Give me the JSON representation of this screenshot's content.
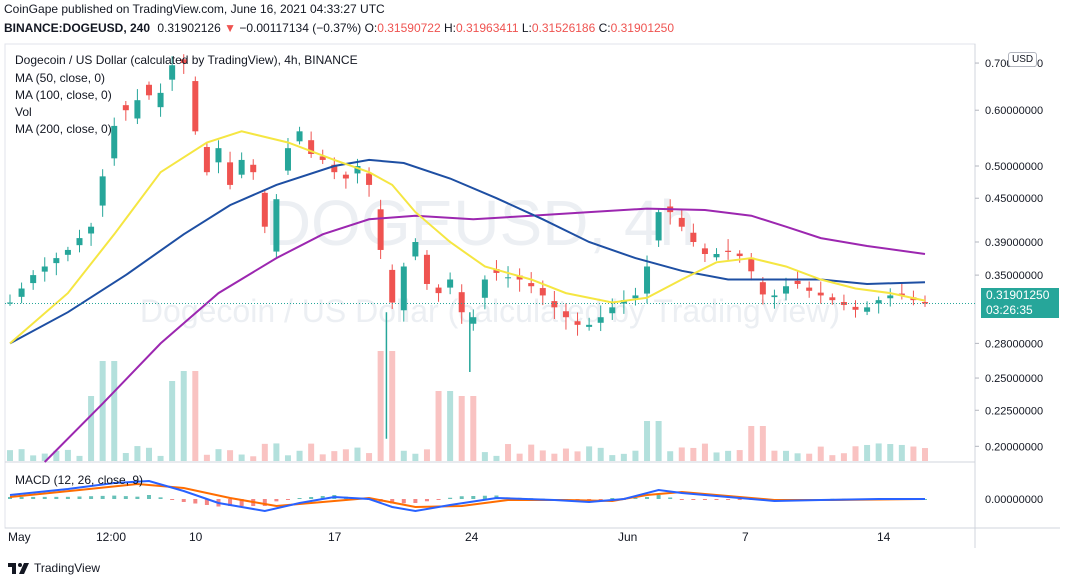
{
  "header": {
    "line1": "CoinGape published on TradingView.com, June 16, 2021 04:33:27 UTC",
    "symbol": "BINANCE:DOGEUSD, 240",
    "price": "0.31902126",
    "change_arrow": "▼",
    "change": "−0.00117134 (−0.37%)",
    "o_label": "O:",
    "o_value": "0.31590722",
    "h_label": "H:",
    "h_value": "0.31963411",
    "l_label": "L:",
    "l_value": "0.31526186",
    "c_label": "C:",
    "c_value": "0.31901250"
  },
  "legend": {
    "title": "Dogecoin / US Dollar (calculated by TradingView), 4h, BINANCE",
    "ma50": "MA (50, close, 0)",
    "ma100": "MA (100, close, 0)",
    "vol": "Vol",
    "ma200": "MA (200, close, 0)",
    "macd": "MACD (12, 26, close, 9)"
  },
  "watermark": {
    "symbol": "DOGEUSD, 4h",
    "desc": "Dogecoin / US Dollar (calculated by TradingView)"
  },
  "price_tag": {
    "price": "0.31901250",
    "countdown": "03:26:35"
  },
  "currency_badge": "USD",
  "footer": {
    "brand": "TradingView"
  },
  "colors": {
    "up": "#26a69a",
    "down": "#ef5350",
    "ma50": "#f5e642",
    "ma100": "#1e4fa3",
    "ma200": "#9c27b0",
    "macd": "#2962ff",
    "signal": "#ff6d00"
  },
  "chart_data": {
    "type": "candlestick",
    "x_labels": [
      "May",
      "12:00",
      "10",
      "17",
      "24",
      "Jun",
      "7",
      "14"
    ],
    "y_ticks": [
      "0.70000000",
      "0.60000000",
      "0.50000000",
      "0.45000000",
      "0.39000000",
      "0.35000000",
      "0.28000000",
      "0.25000000",
      "0.22500000",
      "0.20000000"
    ],
    "macd_ticks": [
      "0.00000000"
    ],
    "last_price": 0.319,
    "price_path": [
      [
        0,
        0.32
      ],
      [
        2,
        0.35
      ],
      [
        5,
        0.38
      ],
      [
        7,
        0.41
      ],
      [
        8.5,
        0.52
      ],
      [
        9.5,
        0.62
      ],
      [
        10.5,
        0.58
      ],
      [
        11.5,
        0.66
      ],
      [
        12.5,
        0.6
      ],
      [
        13.5,
        0.67
      ],
      [
        14.3,
        0.71
      ],
      [
        15,
        0.7
      ],
      [
        15.5,
        0.65
      ],
      [
        16,
        0.56
      ],
      [
        17,
        0.49
      ],
      [
        18,
        0.53
      ],
      [
        19,
        0.47
      ],
      [
        20,
        0.51
      ],
      [
        21,
        0.49
      ],
      [
        22,
        0.41
      ],
      [
        22.5,
        0.37
      ],
      [
        23.2,
        0.48
      ],
      [
        24,
        0.53
      ],
      [
        25,
        0.56
      ],
      [
        26,
        0.52
      ],
      [
        27,
        0.51
      ],
      [
        28,
        0.49
      ],
      [
        29,
        0.48
      ],
      [
        30,
        0.5
      ],
      [
        31,
        0.47
      ],
      [
        32,
        0.38
      ],
      [
        33,
        0.32
      ],
      [
        33.5,
        0.31
      ],
      [
        34,
        0.36
      ],
      [
        35,
        0.39
      ],
      [
        35.5,
        0.37
      ],
      [
        36,
        0.34
      ],
      [
        37,
        0.33
      ],
      [
        38,
        0.345
      ],
      [
        39,
        0.31
      ],
      [
        39.7,
        0.29
      ],
      [
        40.5,
        0.33
      ],
      [
        41.5,
        0.36
      ],
      [
        42.5,
        0.345
      ],
      [
        43.5,
        0.35
      ],
      [
        44.5,
        0.34
      ],
      [
        45.5,
        0.335
      ],
      [
        46.5,
        0.32
      ],
      [
        47.5,
        0.31
      ],
      [
        48.5,
        0.3
      ],
      [
        49.5,
        0.295
      ],
      [
        50.5,
        0.3
      ],
      [
        51.5,
        0.31
      ],
      [
        52.5,
        0.32
      ],
      [
        53.5,
        0.325
      ],
      [
        54.5,
        0.33
      ],
      [
        55,
        0.36
      ],
      [
        55.5,
        0.4
      ],
      [
        56,
        0.43
      ],
      [
        56.5,
        0.44
      ],
      [
        57.5,
        0.42
      ],
      [
        58,
        0.41
      ],
      [
        58.5,
        0.4
      ],
      [
        59.5,
        0.38
      ],
      [
        60.5,
        0.37
      ],
      [
        61.5,
        0.38
      ],
      [
        62.5,
        0.375
      ],
      [
        63.5,
        0.37
      ],
      [
        64.3,
        0.345
      ],
      [
        64.8,
        0.33
      ],
      [
        65.5,
        0.325
      ],
      [
        66.5,
        0.33
      ],
      [
        67.5,
        0.345
      ],
      [
        68.5,
        0.335
      ],
      [
        69.5,
        0.33
      ],
      [
        70.5,
        0.325
      ],
      [
        71.5,
        0.32
      ],
      [
        72.5,
        0.315
      ],
      [
        73.5,
        0.31
      ],
      [
        74.5,
        0.32
      ],
      [
        75.5,
        0.325
      ],
      [
        76.5,
        0.33
      ],
      [
        77.5,
        0.325
      ],
      [
        78.5,
        0.32
      ],
      [
        79,
        0.319
      ]
    ],
    "ma50_path": [
      [
        0,
        0.28
      ],
      [
        5,
        0.33
      ],
      [
        9,
        0.4
      ],
      [
        13,
        0.49
      ],
      [
        17,
        0.54
      ],
      [
        20,
        0.56
      ],
      [
        24,
        0.54
      ],
      [
        28,
        0.51
      ],
      [
        31,
        0.49
      ],
      [
        33,
        0.47
      ],
      [
        35,
        0.43
      ],
      [
        38,
        0.39
      ],
      [
        41,
        0.36
      ],
      [
        45,
        0.345
      ],
      [
        48,
        0.33
      ],
      [
        52,
        0.32
      ],
      [
        55,
        0.325
      ],
      [
        58,
        0.345
      ],
      [
        61,
        0.365
      ],
      [
        64,
        0.37
      ],
      [
        67,
        0.36
      ],
      [
        70,
        0.345
      ],
      [
        73,
        0.335
      ],
      [
        76,
        0.33
      ],
      [
        79,
        0.322
      ]
    ],
    "ma100_path": [
      [
        0,
        0.28
      ],
      [
        5,
        0.31
      ],
      [
        10,
        0.35
      ],
      [
        15,
        0.4
      ],
      [
        19,
        0.44
      ],
      [
        23,
        0.47
      ],
      [
        28,
        0.5
      ],
      [
        31,
        0.51
      ],
      [
        34,
        0.505
      ],
      [
        38,
        0.48
      ],
      [
        42,
        0.45
      ],
      [
        46,
        0.42
      ],
      [
        50,
        0.39
      ],
      [
        54,
        0.37
      ],
      [
        58,
        0.355
      ],
      [
        62,
        0.345
      ],
      [
        66,
        0.345
      ],
      [
        70,
        0.345
      ],
      [
        74,
        0.34
      ],
      [
        79,
        0.342
      ]
    ],
    "ma200_path": [
      [
        3,
        0.19
      ],
      [
        8,
        0.23
      ],
      [
        13,
        0.28
      ],
      [
        18,
        0.33
      ],
      [
        23,
        0.37
      ],
      [
        27,
        0.4
      ],
      [
        31,
        0.42
      ],
      [
        35,
        0.425
      ],
      [
        40,
        0.42
      ],
      [
        45,
        0.425
      ],
      [
        50,
        0.43
      ],
      [
        55,
        0.435
      ],
      [
        60,
        0.433
      ],
      [
        64,
        0.425
      ],
      [
        67,
        0.41
      ],
      [
        70,
        0.395
      ],
      [
        74,
        0.385
      ],
      [
        79,
        0.375
      ]
    ],
    "volume_spikes": [
      [
        7.5,
        0.55
      ],
      [
        8.5,
        0.9
      ],
      [
        14.5,
        0.7
      ],
      [
        15.5,
        0.8
      ],
      [
        32.5,
        1.0
      ],
      [
        37.5,
        0.6
      ],
      [
        39.5,
        0.55
      ],
      [
        55.5,
        0.3
      ],
      [
        64.5,
        0.25
      ]
    ],
    "macd_path": [
      [
        0,
        0.2
      ],
      [
        5,
        0.5
      ],
      [
        9,
        0.8
      ],
      [
        12,
        0.9
      ],
      [
        15,
        0.4
      ],
      [
        18,
        -0.2
      ],
      [
        22,
        -0.6
      ],
      [
        25,
        -0.2
      ],
      [
        28,
        0.1
      ],
      [
        31,
        0.0
      ],
      [
        33,
        -0.4
      ],
      [
        35,
        -0.6
      ],
      [
        38,
        -0.3
      ],
      [
        42,
        0.05
      ],
      [
        47,
        -0.05
      ],
      [
        50,
        -0.15
      ],
      [
        53,
        0.0
      ],
      [
        56,
        0.45
      ],
      [
        58,
        0.3
      ],
      [
        62,
        0.1
      ],
      [
        66,
        -0.1
      ],
      [
        70,
        -0.05
      ],
      [
        75,
        0.0
      ],
      [
        79,
        0.0
      ]
    ],
    "signal_path": [
      [
        0,
        0.1
      ],
      [
        6,
        0.45
      ],
      [
        11,
        0.75
      ],
      [
        15,
        0.55
      ],
      [
        19,
        0.05
      ],
      [
        23,
        -0.35
      ],
      [
        27,
        -0.15
      ],
      [
        31,
        0.05
      ],
      [
        35,
        -0.4
      ],
      [
        39,
        -0.35
      ],
      [
        43,
        -0.05
      ],
      [
        48,
        -0.05
      ],
      [
        52,
        -0.1
      ],
      [
        55,
        0.2
      ],
      [
        58,
        0.35
      ],
      [
        62,
        0.15
      ],
      [
        66,
        -0.05
      ],
      [
        71,
        -0.05
      ],
      [
        79,
        0.0
      ]
    ]
  }
}
